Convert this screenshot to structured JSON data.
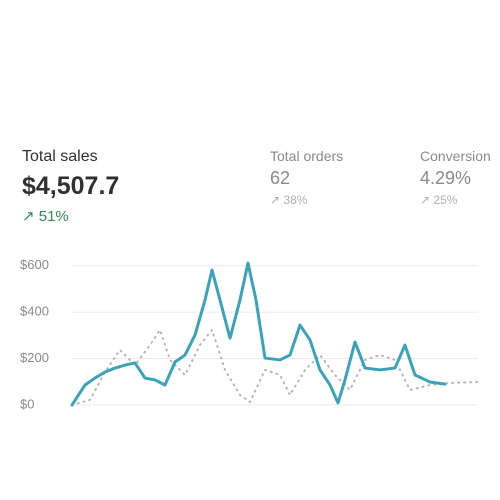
{
  "metrics": [
    {
      "label": "Total sales",
      "value": "$4,507.7",
      "change": "51%"
    },
    {
      "label": "Total orders",
      "value": "62",
      "change": "38%"
    },
    {
      "label": "Conversion",
      "value": "4.29%",
      "change": "25%"
    }
  ],
  "chart_data": {
    "type": "line",
    "xlim": [
      0,
      406
    ],
    "ylim": [
      0,
      650
    ],
    "yticks": [
      {
        "value": 0,
        "label": "$0"
      },
      {
        "value": 200,
        "label": "$200"
      },
      {
        "value": 400,
        "label": "$400"
      },
      {
        "value": 600,
        "label": "$600"
      }
    ],
    "grid": true,
    "series": [
      {
        "color": "#3aa3b8",
        "style": "solid",
        "x": [
          0,
          13,
          23,
          33,
          43,
          53,
          63,
          73,
          83,
          93,
          103,
          113,
          123,
          133,
          140,
          148,
          158,
          168,
          176,
          184,
          193,
          208,
          218,
          228,
          238,
          248,
          258,
          266,
          273,
          283,
          293,
          308,
          323,
          333,
          343,
          358,
          373
        ],
        "values": [
          0,
          86,
          116,
          142,
          159,
          172,
          181,
          116,
          108,
          86,
          185,
          215,
          301,
          452,
          581,
          452,
          288,
          452,
          611,
          452,
          202,
          194,
          215,
          344,
          280,
          151,
          86,
          9,
          108,
          271,
          159,
          151,
          159,
          258,
          129,
          99,
          90
        ]
      },
      {
        "color": "#b5b5b5",
        "style": "dotted",
        "x": [
          0,
          18,
          33,
          48,
          63,
          78,
          88,
          98,
          113,
          128,
          140,
          153,
          168,
          178,
          193,
          208,
          218,
          233,
          248,
          263,
          278,
          293,
          308,
          323,
          338,
          358,
          378,
          406
        ],
        "values": [
          0,
          22,
          142,
          237,
          172,
          258,
          323,
          194,
          129,
          258,
          323,
          151,
          43,
          13,
          151,
          129,
          43,
          151,
          215,
          129,
          65,
          194,
          215,
          194,
          65,
          86,
          95,
          99
        ]
      }
    ]
  }
}
